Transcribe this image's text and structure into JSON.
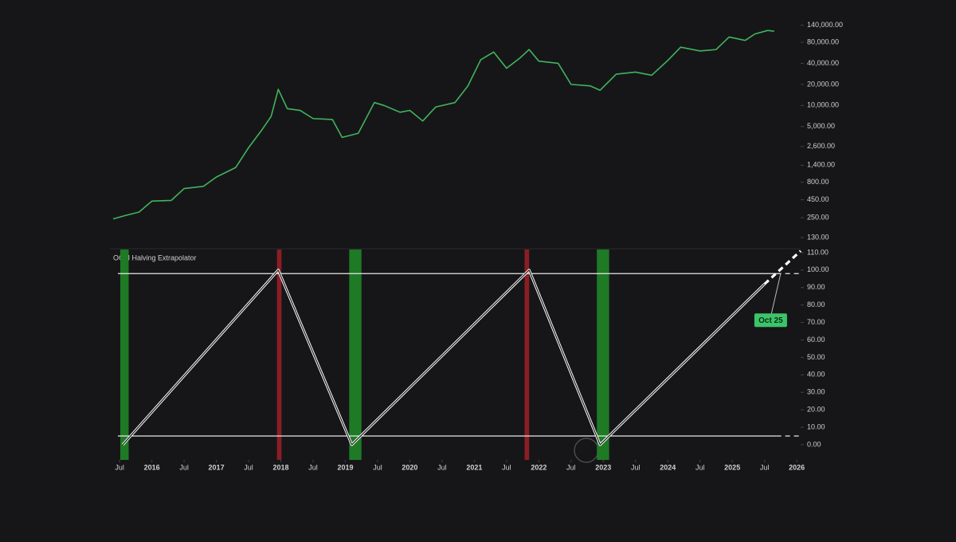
{
  "chart_data": [
    {
      "type": "line",
      "log_scale": true,
      "xlim": [
        2015.35,
        2026.06
      ],
      "ylim": [
        100,
        190000
      ],
      "yticks": [
        {
          "value": 130,
          "label": "130.00"
        },
        {
          "value": 250,
          "label": "250.00"
        },
        {
          "value": 450,
          "label": "450.00"
        },
        {
          "value": 800,
          "label": "800.00"
        },
        {
          "value": 1400,
          "label": "1,400.00"
        },
        {
          "value": 2600,
          "label": "2,600.00"
        },
        {
          "value": 5000,
          "label": "5,000.00"
        },
        {
          "value": 10000,
          "label": "10,000.00"
        },
        {
          "value": 20000,
          "label": "20,000.00"
        },
        {
          "value": 40000,
          "label": "40,000.00"
        },
        {
          "value": 80000,
          "label": "80,000.00"
        },
        {
          "value": 140000,
          "label": "140,000.00"
        }
      ],
      "series": [
        {
          "color": "#3fb55a",
          "x": [
            2015.4,
            2015.6,
            2015.8,
            2016.0,
            2016.3,
            2016.5,
            2016.8,
            2017.0,
            2017.3,
            2017.5,
            2017.7,
            2017.85,
            2017.96,
            2018.1,
            2018.3,
            2018.5,
            2018.8,
            2018.95,
            2019.2,
            2019.45,
            2019.6,
            2019.85,
            2020.0,
            2020.2,
            2020.4,
            2020.7,
            2020.9,
            2021.1,
            2021.3,
            2021.5,
            2021.7,
            2021.85,
            2022.0,
            2022.3,
            2022.5,
            2022.8,
            2022.95,
            2023.2,
            2023.5,
            2023.75,
            2024.0,
            2024.2,
            2024.5,
            2024.75,
            2024.95,
            2025.2,
            2025.35,
            2025.55,
            2025.65
          ],
          "values": [
            240,
            270,
            300,
            430,
            440,
            650,
            700,
            950,
            1300,
            2500,
            4400,
            7000,
            17000,
            9000,
            8500,
            6500,
            6300,
            3500,
            4000,
            11000,
            10000,
            8000,
            8500,
            6000,
            9500,
            11000,
            19000,
            45000,
            58000,
            34000,
            47000,
            63000,
            43000,
            40000,
            20000,
            19000,
            16500,
            28000,
            30000,
            27000,
            44000,
            68000,
            60000,
            63000,
            95000,
            85000,
            105000,
            118000,
            115000
          ]
        }
      ]
    },
    {
      "type": "line",
      "title": "OCM Halving Extrapolator",
      "xlim": [
        2015.35,
        2026.06
      ],
      "ylim": [
        -8.7,
        111.8
      ],
      "xticks": [
        {
          "value": 2015.5,
          "label": "Jul"
        },
        2016,
        {
          "value": 2016.5,
          "label": "Jul"
        },
        2017,
        {
          "value": 2017.5,
          "label": "Jul"
        },
        2018,
        {
          "value": 2018.5,
          "label": "Jul"
        },
        2019,
        {
          "value": 2019.5,
          "label": "Jul"
        },
        2020,
        {
          "value": 2020.5,
          "label": "Jul"
        },
        2021,
        {
          "value": 2021.5,
          "label": "Jul"
        },
        2022,
        {
          "value": 2022.5,
          "label": "Jul"
        },
        2023,
        {
          "value": 2023.5,
          "label": "Jul"
        },
        2024,
        {
          "value": 2024.5,
          "label": "Jul"
        },
        2025,
        {
          "value": 2025.5,
          "label": "Jul"
        },
        2026
      ],
      "yticks": [
        {
          "value": 0,
          "label": "0.00"
        },
        {
          "value": 10,
          "label": "10.00"
        },
        {
          "value": 20,
          "label": "20.00"
        },
        {
          "value": 30,
          "label": "30.00"
        },
        {
          "value": 40,
          "label": "40.00"
        },
        {
          "value": 50,
          "label": "50.00"
        },
        {
          "value": 60,
          "label": "60.00"
        },
        {
          "value": 70,
          "label": "70.00"
        },
        {
          "value": 80,
          "label": "80.00"
        },
        {
          "value": 90,
          "label": "90.00"
        },
        {
          "value": 100,
          "label": "100.00"
        },
        {
          "value": 110,
          "label": "110.00"
        }
      ],
      "bands": [
        {
          "start": 2015.51,
          "end": 2015.64,
          "color": "#1f7a26"
        },
        {
          "start": 2017.94,
          "end": 2018.01,
          "color": "#8a1e24"
        },
        {
          "start": 2019.06,
          "end": 2019.25,
          "color": "#1f7a26"
        },
        {
          "start": 2021.78,
          "end": 2021.85,
          "color": "#8a1e24"
        },
        {
          "start": 2022.9,
          "end": 2023.09,
          "color": "#1f7a26"
        }
      ],
      "hlines": [
        98,
        5
      ],
      "series": [
        {
          "color": "#ffffff",
          "x": [
            2015.55,
            2017.96,
            2019.1,
            2021.85,
            2022.95,
            2025.5
          ],
          "values": [
            0,
            100,
            0,
            100,
            0,
            92
          ]
        },
        {
          "color": "#ffffff",
          "dashed": true,
          "x": [
            2025.5,
            2026.06
          ],
          "values": [
            92,
            111
          ]
        }
      ],
      "annotations": [
        {
          "text": "Oct 25",
          "x": 2025.75,
          "y": 98,
          "color": "#3cc46a"
        }
      ]
    }
  ]
}
